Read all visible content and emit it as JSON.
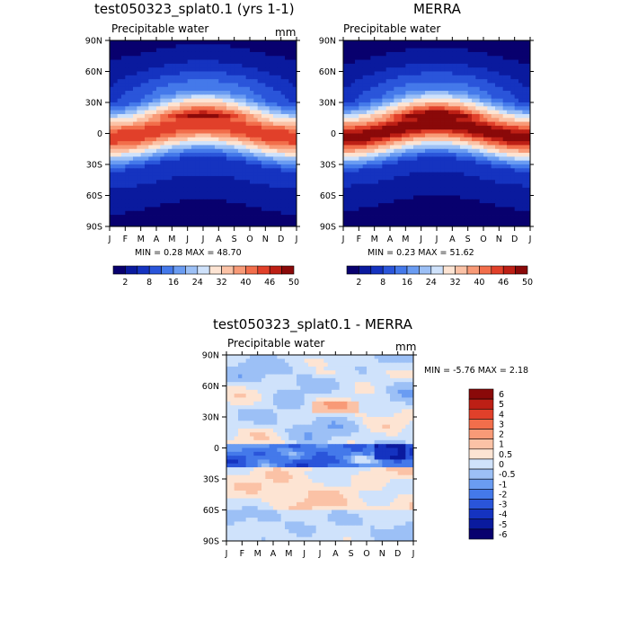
{
  "colors": {
    "diverging": [
      "#08006e",
      "#0a1a9e",
      "#1533c0",
      "#2a55da",
      "#4479ea",
      "#6a9cf2",
      "#9cc0f6",
      "#cfe2fb",
      "#fde4d3",
      "#fbc2a6",
      "#f89a77",
      "#f26e4b",
      "#e1402a",
      "#bd1f15",
      "#8a0909"
    ]
  },
  "chart_data": [
    {
      "type": "heatmap",
      "title": "test050323_splat0.1 (yrs 1-1)",
      "subtitle": "Precipitable water",
      "units": "mm",
      "x_ticks": [
        "J",
        "F",
        "M",
        "A",
        "M",
        "J",
        "J",
        "A",
        "S",
        "O",
        "N",
        "D",
        "J"
      ],
      "y_ticks": [
        "90N",
        "60N",
        "30N",
        "0",
        "30S",
        "60S",
        "90S"
      ],
      "ylim": [
        -90,
        90
      ],
      "stats": "MIN =    0.28 MAX =   48.70",
      "colorbar": {
        "labels": [
          "2",
          "8",
          "16",
          "24",
          "32",
          "40",
          "46",
          "50"
        ],
        "n_levels": 15
      },
      "field": {
        "eq_max": 47,
        "pole_min": 1,
        "anomaly_amp": 0
      }
    },
    {
      "type": "heatmap",
      "title": "MERRA",
      "subtitle": "Precipitable water",
      "units": "",
      "x_ticks": [
        "J",
        "F",
        "M",
        "A",
        "M",
        "J",
        "J",
        "A",
        "S",
        "O",
        "N",
        "D",
        "J"
      ],
      "y_ticks": [
        "90N",
        "60N",
        "30N",
        "0",
        "30S",
        "60S",
        "90S"
      ],
      "ylim": [
        -90,
        90
      ],
      "stats": "MIN =    0.23 MAX =   51.62",
      "colorbar": {
        "labels": [
          "2",
          "8",
          "16",
          "24",
          "32",
          "40",
          "46",
          "50"
        ],
        "n_levels": 15
      },
      "field": {
        "eq_max": 51,
        "pole_min": 0.5,
        "anomaly_amp": 0
      }
    },
    {
      "type": "heatmap",
      "title": "test050323_splat0.1 - MERRA",
      "subtitle": "Precipitable water",
      "units": "mm",
      "x_ticks": [
        "J",
        "F",
        "M",
        "A",
        "M",
        "J",
        "J",
        "A",
        "S",
        "O",
        "N",
        "D",
        "J"
      ],
      "y_ticks": [
        "90N",
        "60N",
        "30N",
        "0",
        "30S",
        "60S",
        "90S"
      ],
      "ylim": [
        -90,
        90
      ],
      "stats": "MIN =   -5.76 MAX =    2.18",
      "colorbar": {
        "labels": [
          "6",
          "5",
          "4",
          "3",
          "2",
          "1",
          "0.5",
          "0",
          "-0.5",
          "-1",
          "-2",
          "-3",
          "-4",
          "-5",
          "-6"
        ],
        "n_levels": 15
      },
      "field": {
        "min": -5.76,
        "max": 2.18
      }
    }
  ]
}
